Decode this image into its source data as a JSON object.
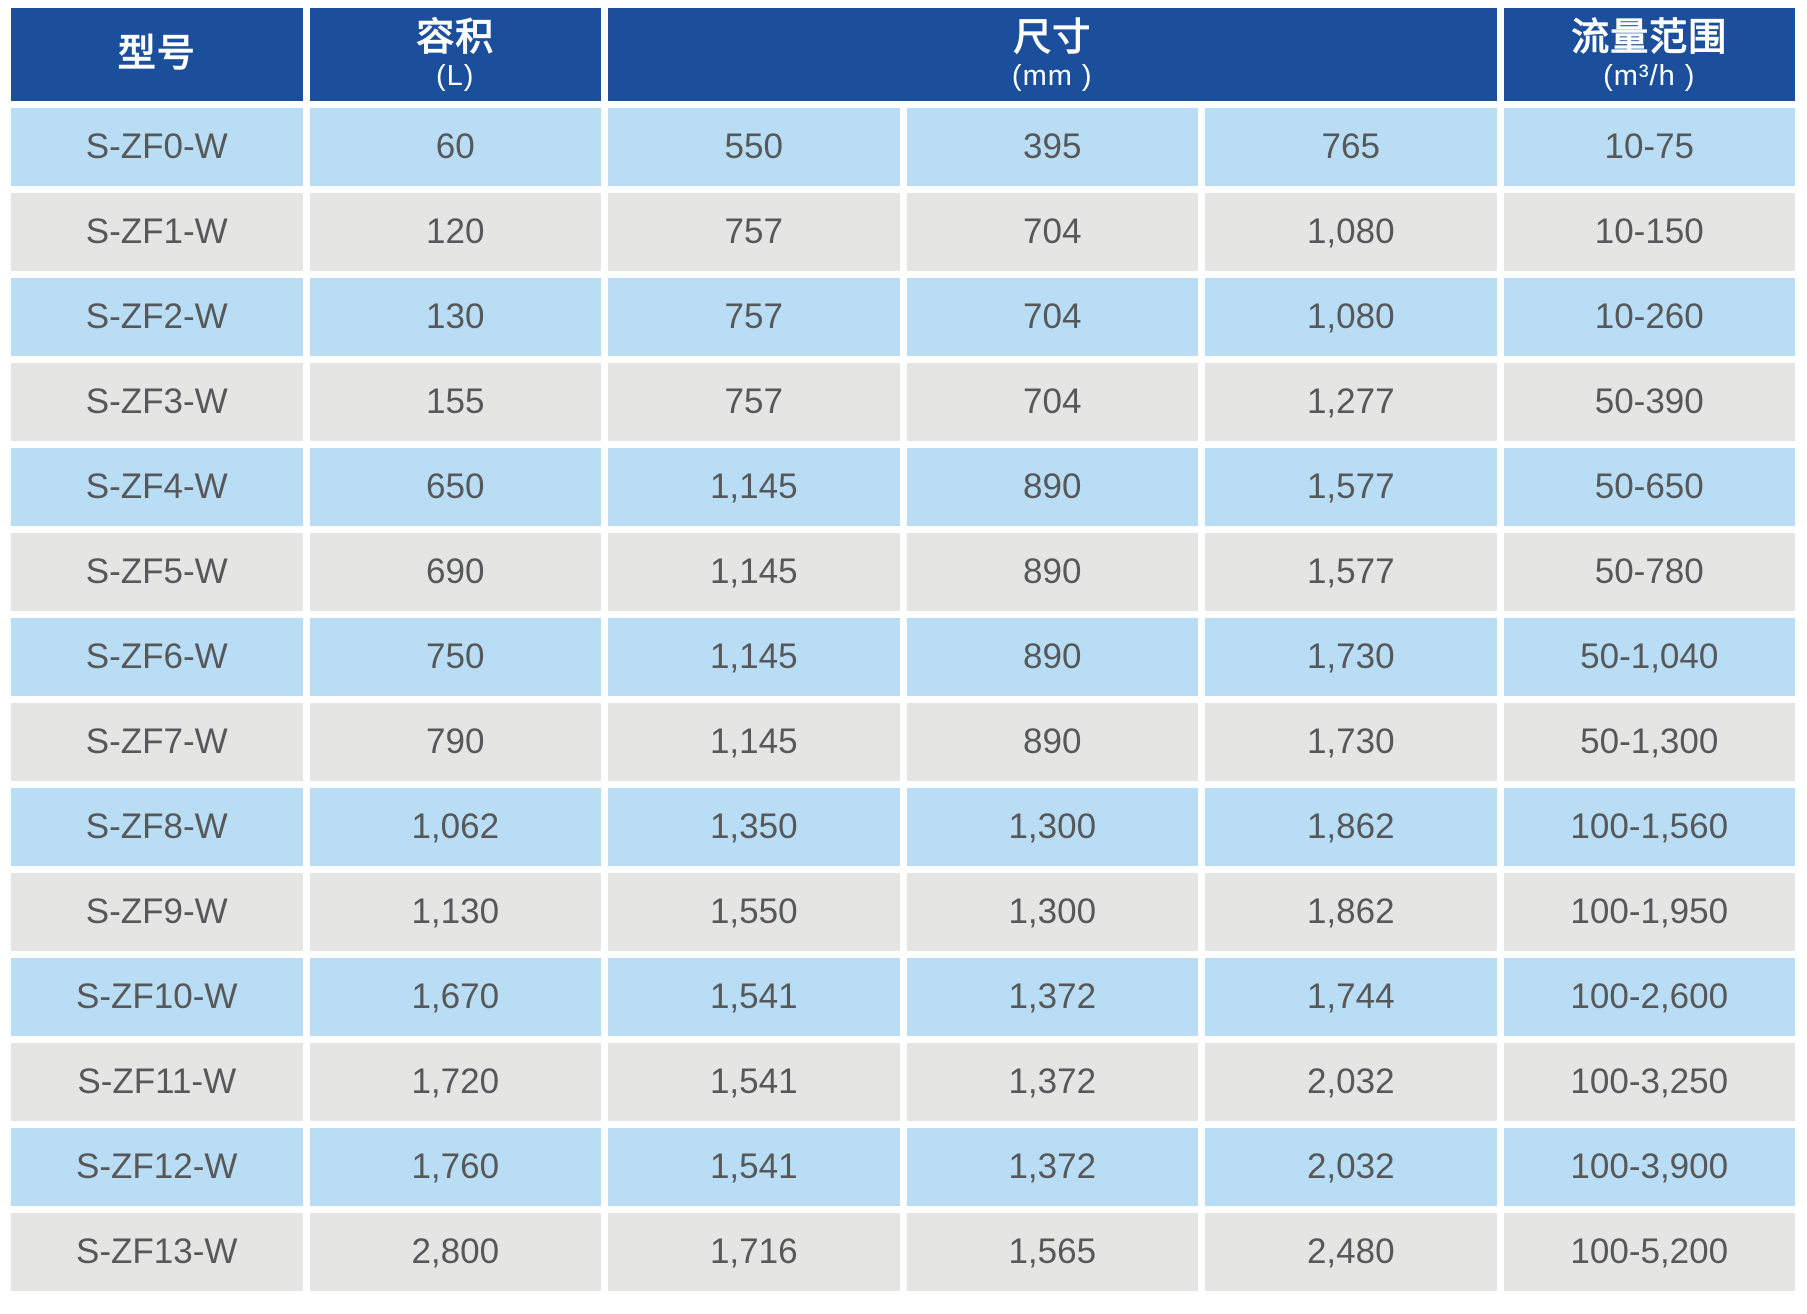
{
  "colors": {
    "header_bg": "#1b4f9c",
    "header_text": "#ffffff",
    "row_blue": "#b8ddf4",
    "row_gray": "#e5e5e4",
    "cell_text": "#57585a",
    "page_bg": "#ffffff"
  },
  "table": {
    "columns": [
      {
        "id": "model",
        "title": "型号",
        "unit": "",
        "span": 1
      },
      {
        "id": "volume",
        "title": "容积",
        "unit": "(L)",
        "span": 1
      },
      {
        "id": "dimensions",
        "title": "尺寸",
        "unit": "(mm )",
        "span": 3
      },
      {
        "id": "flow",
        "title": "流量范围",
        "unit": "(m³/h )",
        "span": 1
      }
    ],
    "rows": [
      {
        "model": "S-ZF0-W",
        "volume": "60",
        "dim_l": "550",
        "dim_w": "395",
        "dim_h": "765",
        "flow": "10-75"
      },
      {
        "model": "S-ZF1-W",
        "volume": "120",
        "dim_l": "757",
        "dim_w": "704",
        "dim_h": "1,080",
        "flow": "10-150"
      },
      {
        "model": "S-ZF2-W",
        "volume": "130",
        "dim_l": "757",
        "dim_w": "704",
        "dim_h": "1,080",
        "flow": "10-260"
      },
      {
        "model": "S-ZF3-W",
        "volume": "155",
        "dim_l": "757",
        "dim_w": "704",
        "dim_h": "1,277",
        "flow": "50-390"
      },
      {
        "model": "S-ZF4-W",
        "volume": "650",
        "dim_l": "1,145",
        "dim_w": "890",
        "dim_h": "1,577",
        "flow": "50-650"
      },
      {
        "model": "S-ZF5-W",
        "volume": "690",
        "dim_l": "1,145",
        "dim_w": "890",
        "dim_h": "1,577",
        "flow": "50-780"
      },
      {
        "model": "S-ZF6-W",
        "volume": "750",
        "dim_l": "1,145",
        "dim_w": "890",
        "dim_h": "1,730",
        "flow": "50-1,040"
      },
      {
        "model": "S-ZF7-W",
        "volume": "790",
        "dim_l": "1,145",
        "dim_w": "890",
        "dim_h": "1,730",
        "flow": "50-1,300"
      },
      {
        "model": "S-ZF8-W",
        "volume": "1,062",
        "dim_l": "1,350",
        "dim_w": "1,300",
        "dim_h": "1,862",
        "flow": "100-1,560"
      },
      {
        "model": "S-ZF9-W",
        "volume": "1,130",
        "dim_l": "1,550",
        "dim_w": "1,300",
        "dim_h": "1,862",
        "flow": "100-1,950"
      },
      {
        "model": "S-ZF10-W",
        "volume": "1,670",
        "dim_l": "1,541",
        "dim_w": "1,372",
        "dim_h": "1,744",
        "flow": "100-2,600"
      },
      {
        "model": "S-ZF11-W",
        "volume": "1,720",
        "dim_l": "1,541",
        "dim_w": "1,372",
        "dim_h": "2,032",
        "flow": "100-3,250"
      },
      {
        "model": "S-ZF12-W",
        "volume": "1,760",
        "dim_l": "1,541",
        "dim_w": "1,372",
        "dim_h": "2,032",
        "flow": "100-3,900"
      },
      {
        "model": "S-ZF13-W",
        "volume": "2,800",
        "dim_l": "1,716",
        "dim_w": "1,565",
        "dim_h": "2,480",
        "flow": "100-5,200"
      }
    ]
  }
}
